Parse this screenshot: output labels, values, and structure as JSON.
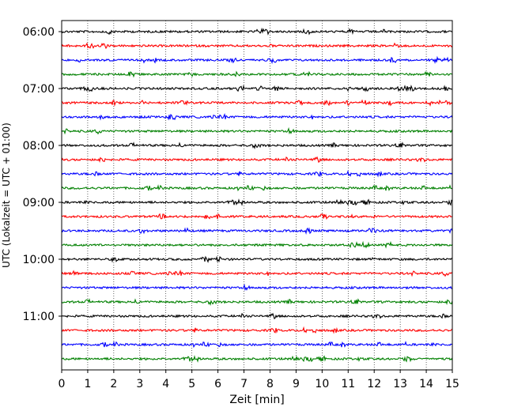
{
  "chart_data": {
    "type": "line",
    "title": "",
    "xlabel": "Zeit  [min]",
    "ylabel": "UTC (Lokalzeit = UTC + 01:00)",
    "xlim": [
      0,
      15
    ],
    "x_ticks": [
      "0",
      "1",
      "2",
      "3",
      "4",
      "5",
      "6",
      "7",
      "8",
      "9",
      "10",
      "11",
      "12",
      "13",
      "14",
      "15"
    ],
    "y_ticks": [
      "06:00",
      "07:00",
      "08:00",
      "09:00",
      "10:00",
      "11:00"
    ],
    "grid": "vertical dotted at each minute",
    "trace_interval_minutes": 15,
    "trace_start_times": [
      "06:00",
      "06:15",
      "06:30",
      "06:45",
      "07:00",
      "07:15",
      "07:30",
      "07:45",
      "08:00",
      "08:15",
      "08:30",
      "08:45",
      "09:00",
      "09:15",
      "09:30",
      "09:45",
      "10:00",
      "10:15",
      "10:30",
      "10:45",
      "11:00",
      "11:15",
      "11:30",
      "11:45"
    ],
    "trace_colors": [
      "#000000",
      "#ff0000",
      "#0000ff",
      "#008000"
    ]
  }
}
